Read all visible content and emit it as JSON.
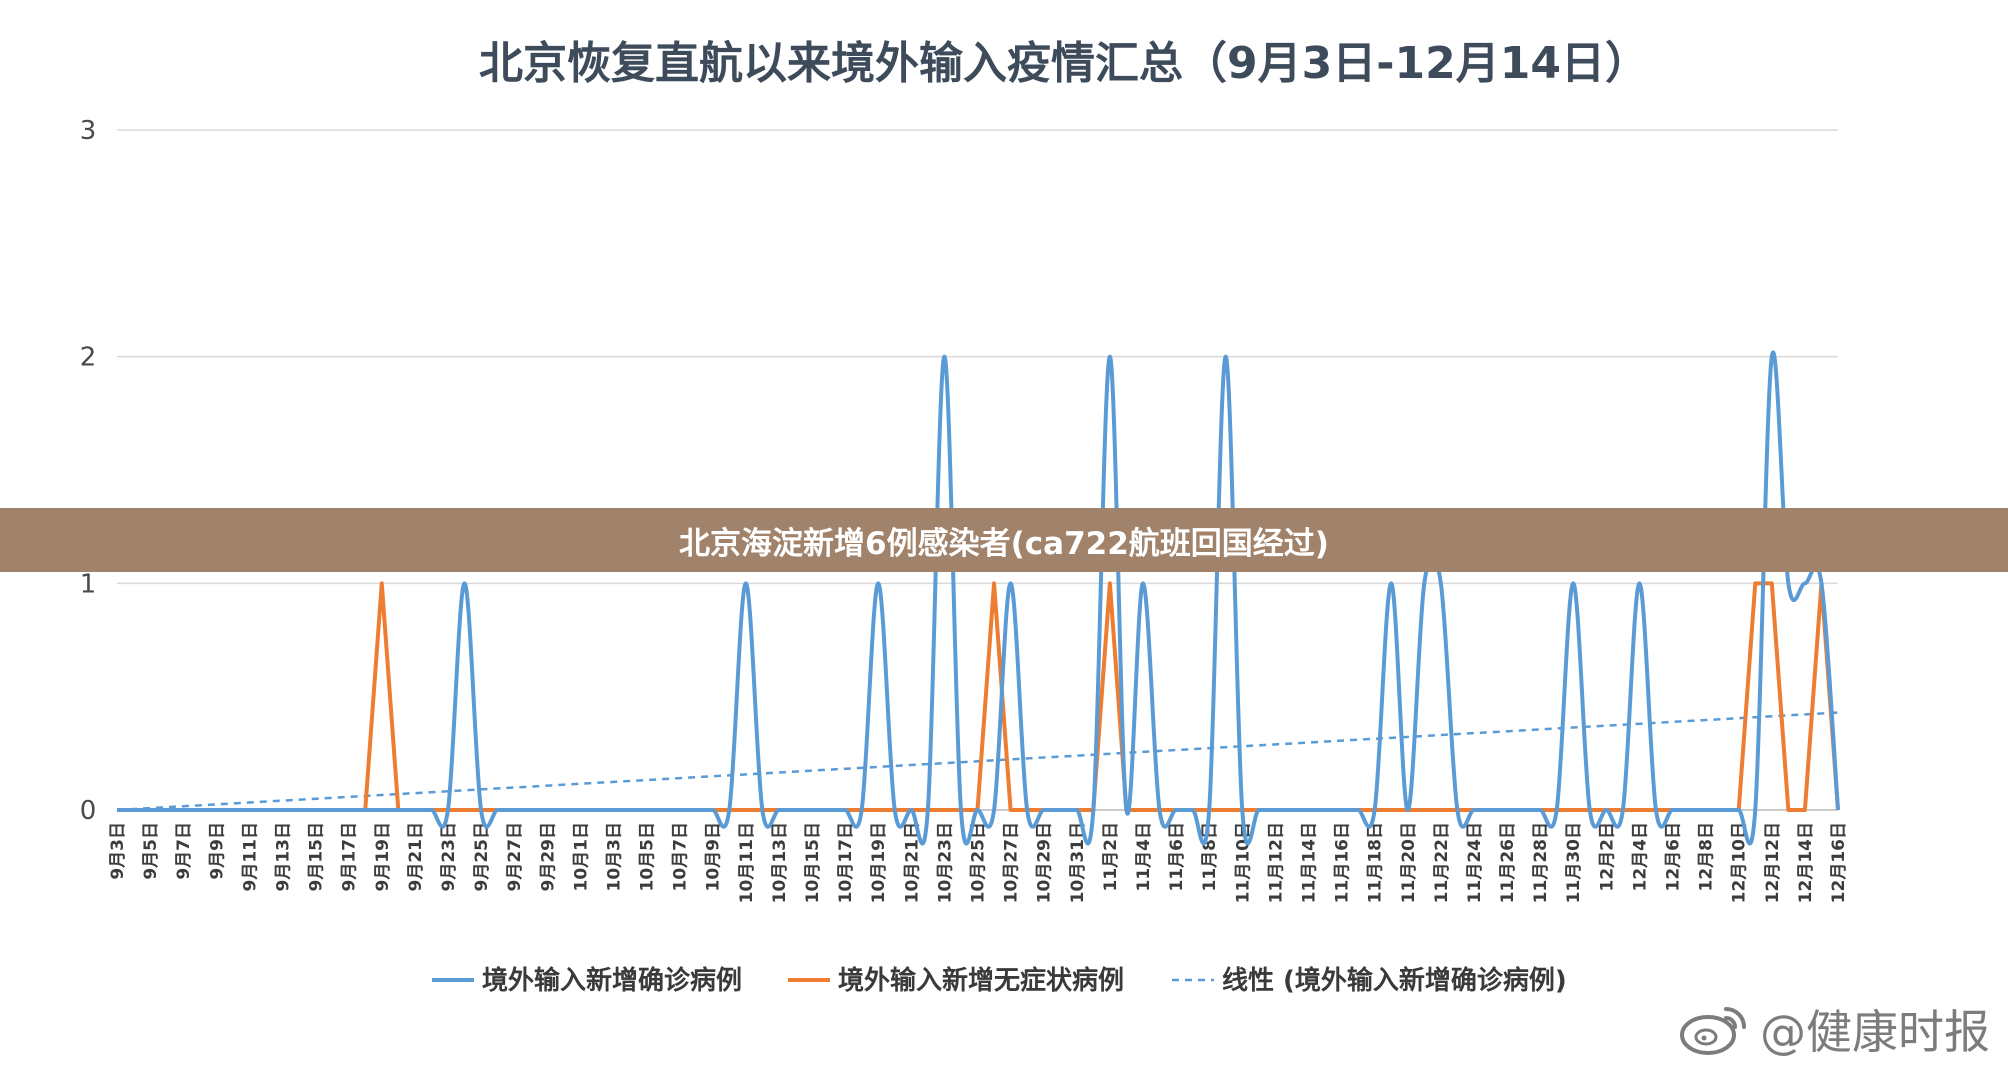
{
  "chart_data": {
    "type": "line",
    "title": "北京恢复直航以来境外输入疫情汇总（9月3日-12月14日）",
    "ylim": [
      0,
      3
    ],
    "yticks": [
      0,
      1,
      2,
      3
    ],
    "grid": true,
    "legend_position": "bottom",
    "x_tick_labels": [
      "9月3日",
      "9月5日",
      "9月7日",
      "9月9日",
      "9月11日",
      "9月13日",
      "9月15日",
      "9月17日",
      "9月19日",
      "9月21日",
      "9月23日",
      "9月25日",
      "9月27日",
      "9月29日",
      "10月1日",
      "10月3日",
      "10月5日",
      "10月7日",
      "10月9日",
      "10月11日",
      "10月13日",
      "10月15日",
      "10月17日",
      "10月19日",
      "10月21日",
      "10月23日",
      "10月25日",
      "10月27日",
      "10月29日",
      "10月31日",
      "11月2日",
      "11月4日",
      "11月6日",
      "11月8日",
      "11月10日",
      "11月12日",
      "11月14日",
      "11月16日",
      "11月18日",
      "11月20日",
      "11月22日",
      "11月24日",
      "11月26日",
      "11月28日",
      "11月30日",
      "12月2日",
      "12月4日",
      "12月6日",
      "12月8日",
      "12月10日",
      "12月12日",
      "12月14日",
      "12月16日"
    ],
    "x_start": "9月3日",
    "x_end": "12月16日",
    "series": [
      {
        "name": "境外输入新增确诊病例",
        "color": "#5b9bd5",
        "style": "solid",
        "points": [
          [
            "9月24日",
            1
          ],
          [
            "10月11日",
            1
          ],
          [
            "10月19日",
            1
          ],
          [
            "10月23日",
            2
          ],
          [
            "10月27日",
            1
          ],
          [
            "11月2日",
            2
          ],
          [
            "11月4日",
            1
          ],
          [
            "11月9日",
            2
          ],
          [
            "11月19日",
            1
          ],
          [
            "11月21日",
            1
          ],
          [
            "11月22日",
            1
          ],
          [
            "11月30日",
            1
          ],
          [
            "12月4日",
            1
          ],
          [
            "12月12日",
            2
          ],
          [
            "12月13日",
            1
          ],
          [
            "12月14日",
            1
          ],
          [
            "12月15日",
            1
          ]
        ]
      },
      {
        "name": "境外输入新增无症状病例",
        "color": "#ed7d31",
        "style": "solid",
        "points": [
          [
            "9月19日",
            1
          ],
          [
            "10月26日",
            1
          ],
          [
            "11月2日",
            1
          ],
          [
            "12月11日",
            1
          ],
          [
            "12月12日",
            1
          ],
          [
            "12月15日",
            1
          ]
        ]
      },
      {
        "name": "线性 (境外输入新增确诊病例)",
        "color": "#5b9bd5",
        "style": "dashed",
        "trend_start": 0,
        "trend_end": 0.43
      }
    ]
  },
  "banner": {
    "text": "北京海淀新增6例感染者(ca722航班回国经过)"
  },
  "watermark": {
    "text": "@健康时报",
    "icon": "weibo-icon"
  }
}
